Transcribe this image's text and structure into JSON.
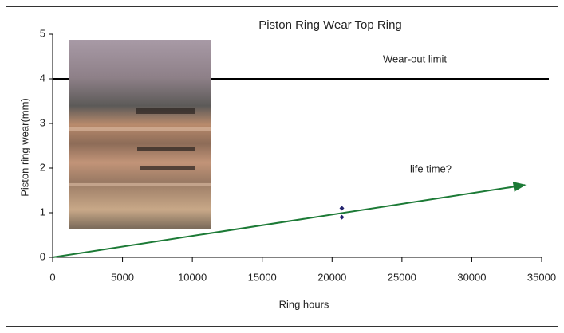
{
  "chart_data": {
    "type": "scatter",
    "title": "Piston Ring Wear Top Ring",
    "xlabel": "Ring hours",
    "ylabel": "Piston ring wear(mm)",
    "annotations": [
      "Wear-out limit",
      "life time?"
    ],
    "x": [
      20700,
      20700
    ],
    "values": [
      1.1,
      0.9
    ],
    "color": "#23236e",
    "trend": {
      "x": [
        0,
        33800
      ],
      "values": [
        0,
        1.62
      ],
      "color": "#1c7a36"
    },
    "wear_limit": 4,
    "xlim": [
      0,
      35000
    ],
    "xticks": [
      0,
      5000,
      10000,
      15000,
      20000,
      25000,
      30000,
      35000
    ],
    "ylim": [
      0,
      5
    ],
    "yticks": [
      0,
      1,
      2,
      3,
      4,
      5
    ]
  }
}
